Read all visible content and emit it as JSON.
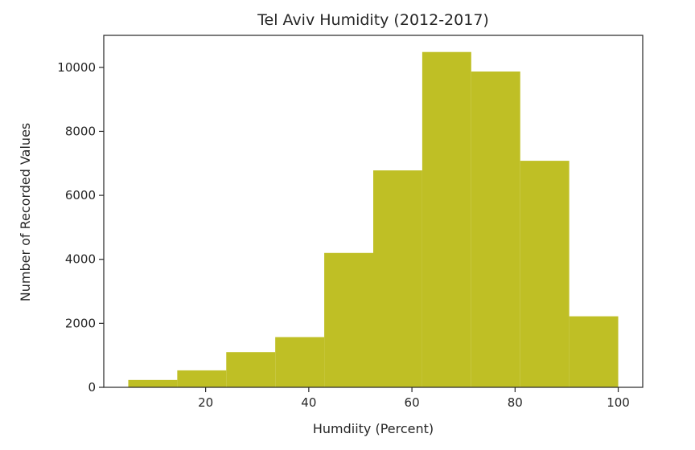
{
  "chart_data": {
    "type": "bar",
    "title": "Tel Aviv Humidity (2012-2017)",
    "xlabel": "Humdiity (Percent)",
    "ylabel": "Number of Recorded Values",
    "color": "#bfbf25",
    "bins": [
      {
        "x0": 5.0,
        "x1": 14.5,
        "value": 230
      },
      {
        "x0": 14.5,
        "x1": 24.0,
        "value": 530
      },
      {
        "x0": 24.0,
        "x1": 33.5,
        "value": 1100
      },
      {
        "x0": 33.5,
        "x1": 43.0,
        "value": 1570
      },
      {
        "x0": 43.0,
        "x1": 52.5,
        "value": 4200
      },
      {
        "x0": 52.5,
        "x1": 62.0,
        "value": 6780
      },
      {
        "x0": 62.0,
        "x1": 71.5,
        "value": 10480
      },
      {
        "x0": 71.5,
        "x1": 81.0,
        "value": 9870
      },
      {
        "x0": 81.0,
        "x1": 90.5,
        "value": 7080
      },
      {
        "x0": 90.5,
        "x1": 100.0,
        "value": 2220
      }
    ],
    "xlim": [
      0.25,
      104.75
    ],
    "ylim": [
      0,
      11000
    ],
    "xticks": [
      20,
      40,
      60,
      80,
      100
    ],
    "yticks": [
      0,
      2000,
      4000,
      6000,
      8000,
      10000
    ],
    "grid": false,
    "legend": "none"
  }
}
